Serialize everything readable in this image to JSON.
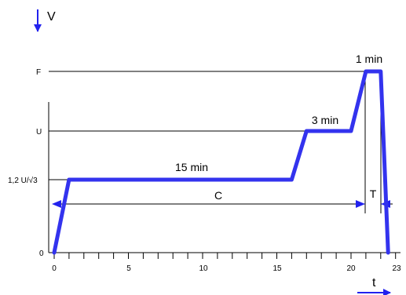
{
  "chart_data": {
    "type": "line",
    "axes": {
      "x_label": "t",
      "y_label": "V",
      "x_ticks": [
        "0",
        "5",
        "10",
        "15",
        "20",
        "23"
      ],
      "y_ticks": [
        "0",
        "1,2 U/√3",
        "U",
        "F"
      ]
    },
    "series": [
      {
        "points": [
          {
            "t": 0,
            "v": 0
          },
          {
            "t": 1,
            "v": 1
          },
          {
            "t": 16,
            "v": 1
          },
          {
            "t": 17,
            "v": 2
          },
          {
            "t": 20,
            "v": 2
          },
          {
            "t": 21,
            "v": 3
          },
          {
            "t": 22,
            "v": 3
          },
          {
            "t": 22.5,
            "v": 0
          }
        ]
      }
    ],
    "annotations": {
      "hold_1": "15 min",
      "hold_2": "3 min",
      "hold_3": "1 min",
      "interval_c": "C",
      "interval_t": "T"
    },
    "colors": {
      "curve": "#3333ee",
      "arrow": "#2222ee",
      "lines": "#000000"
    }
  }
}
